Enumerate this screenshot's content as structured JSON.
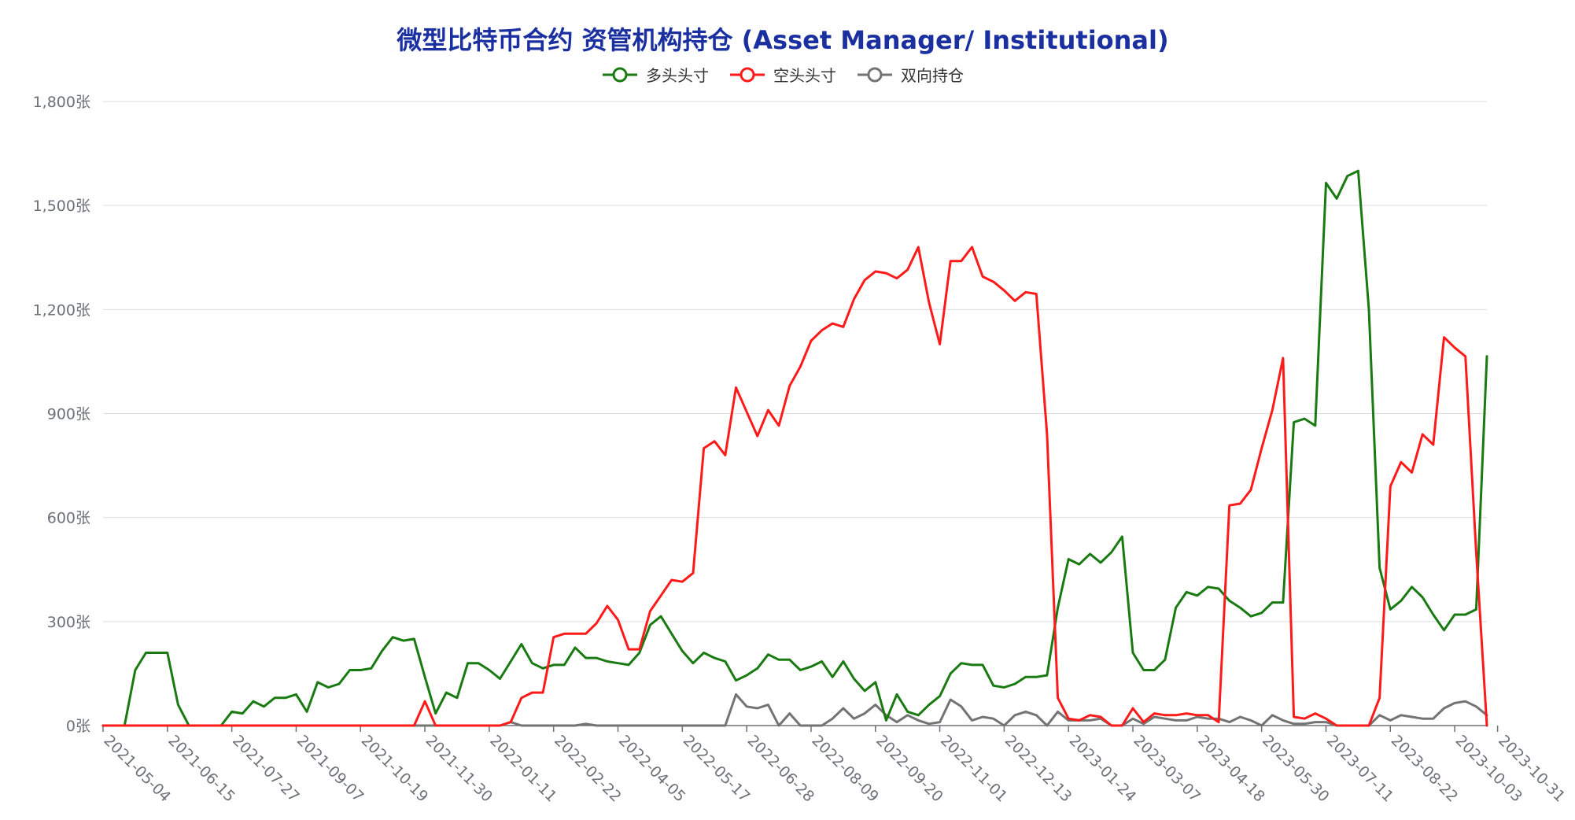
{
  "title": "微型比特币合约 资管机构持仓 (Asset Manager/ Institutional)",
  "colors": {
    "long": "#1a7a12",
    "short": "#ff1a1a",
    "spread": "#737373",
    "title": "#1a2fa0"
  },
  "chart_data": {
    "type": "line",
    "title": "微型比特币合约 资管机构持仓 (Asset Manager/ Institutional)",
    "xlabel": "",
    "ylabel": "",
    "ylim": [
      0,
      1800
    ],
    "y_ticks": [
      "0张",
      "300张",
      "600张",
      "900张",
      "1,200张",
      "1,500张",
      "1,800张"
    ],
    "y_tick_values": [
      0,
      300,
      600,
      900,
      1200,
      1500,
      1800
    ],
    "x_tick_labels": [
      "2021-05-04",
      "2021-06-15",
      "2021-07-27",
      "2021-09-07",
      "2021-10-19",
      "2021-11-30",
      "2022-01-11",
      "2022-02-22",
      "2022-04-05",
      "2022-05-17",
      "2022-06-28",
      "2022-08-09",
      "2022-09-20",
      "2022-11-01",
      "2022-12-13",
      "2023-01-24",
      "2023-03-07",
      "2023-04-18",
      "2023-05-30",
      "2023-07-11",
      "2023-08-22",
      "2023-10-03",
      "2023-10-31"
    ],
    "x_tick_index": [
      0,
      6,
      12,
      18,
      24,
      30,
      36,
      42,
      48,
      54,
      60,
      66,
      72,
      78,
      84,
      90,
      96,
      102,
      108,
      114,
      120,
      126,
      130
    ],
    "legend_position": "top-center",
    "grid": true,
    "series": [
      {
        "name": "多头头寸",
        "color": "#1a7a12",
        "values": [
          0,
          0,
          0,
          160,
          210,
          210,
          210,
          60,
          0,
          0,
          0,
          0,
          40,
          35,
          70,
          55,
          80,
          80,
          90,
          40,
          125,
          110,
          120,
          160,
          160,
          165,
          215,
          255,
          245,
          250,
          140,
          35,
          95,
          80,
          180,
          180,
          160,
          135,
          185,
          235,
          180,
          165,
          175,
          175,
          225,
          195,
          195,
          185,
          180,
          175,
          210,
          290,
          315,
          265,
          215,
          180,
          210,
          195,
          185,
          130,
          145,
          165,
          205,
          190,
          190,
          160,
          170,
          185,
          140,
          185,
          135,
          100,
          125,
          15,
          90,
          40,
          30,
          60,
          85,
          150,
          180,
          175,
          175,
          115,
          110,
          120,
          140,
          140,
          145,
          340,
          480,
          465,
          495,
          470,
          500,
          545,
          210,
          160,
          160,
          190,
          340,
          385,
          375,
          400,
          395,
          360,
          340,
          315,
          325,
          355,
          355,
          875,
          885,
          865,
          1565,
          1520,
          1585,
          1600,
          1200,
          455,
          335,
          360,
          400,
          370,
          320,
          275,
          320,
          320,
          335,
          1065
        ]
      },
      {
        "name": "空头头寸",
        "color": "#ff1a1a",
        "values": [
          0,
          0,
          0,
          0,
          0,
          0,
          0,
          0,
          0,
          0,
          0,
          0,
          0,
          0,
          0,
          0,
          0,
          0,
          0,
          0,
          0,
          0,
          0,
          0,
          0,
          0,
          0,
          0,
          0,
          0,
          70,
          0,
          0,
          0,
          0,
          0,
          0,
          0,
          10,
          80,
          95,
          95,
          255,
          265,
          265,
          265,
          295,
          345,
          305,
          220,
          220,
          330,
          375,
          420,
          415,
          440,
          800,
          820,
          780,
          975,
          905,
          835,
          910,
          865,
          980,
          1035,
          1110,
          1140,
          1160,
          1150,
          1230,
          1285,
          1310,
          1305,
          1290,
          1315,
          1380,
          1220,
          1100,
          1340,
          1340,
          1380,
          1295,
          1280,
          1255,
          1225,
          1250,
          1245,
          840,
          80,
          20,
          15,
          30,
          25,
          0,
          0,
          50,
          10,
          35,
          30,
          30,
          35,
          30,
          30,
          10,
          635,
          640,
          680,
          800,
          910,
          1060,
          25,
          20,
          35,
          20,
          0,
          0,
          0,
          0,
          80,
          690,
          760,
          730,
          840,
          810,
          1120,
          1090,
          1065,
          500,
          0
        ]
      },
      {
        "name": "双向持仓",
        "color": "#737373",
        "values": [
          0,
          0,
          0,
          0,
          0,
          0,
          0,
          0,
          0,
          0,
          0,
          0,
          0,
          0,
          0,
          0,
          0,
          0,
          0,
          0,
          0,
          0,
          0,
          0,
          0,
          0,
          0,
          0,
          0,
          0,
          0,
          0,
          0,
          0,
          0,
          0,
          0,
          0,
          10,
          0,
          0,
          0,
          0,
          0,
          0,
          5,
          0,
          0,
          0,
          0,
          0,
          0,
          0,
          0,
          0,
          0,
          0,
          0,
          0,
          90,
          55,
          50,
          60,
          0,
          35,
          0,
          0,
          0,
          20,
          50,
          20,
          35,
          60,
          30,
          10,
          30,
          15,
          5,
          10,
          75,
          55,
          15,
          25,
          20,
          0,
          30,
          40,
          30,
          0,
          40,
          15,
          15,
          15,
          20,
          0,
          0,
          20,
          5,
          25,
          20,
          15,
          15,
          25,
          20,
          20,
          10,
          25,
          15,
          0,
          30,
          15,
          5,
          5,
          10,
          10,
          0,
          0,
          0,
          0,
          30,
          15,
          30,
          25,
          20,
          20,
          50,
          65,
          70,
          55,
          30
        ]
      }
    ]
  }
}
